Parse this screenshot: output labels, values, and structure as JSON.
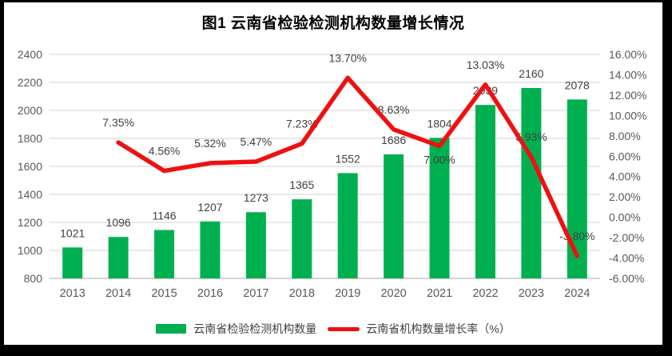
{
  "title": "图1 云南省检验检测机构数量增长情况",
  "colors": {
    "bar": "#00B050",
    "line": "#EE1111",
    "gridline": "#DCDCDC",
    "axis_line": "#C6C6C6",
    "tick_text": "#595959",
    "data_label_text": "#404040"
  },
  "legend": {
    "bar_label": "云南省检验检测机构数量",
    "line_label": "云南省机构数量增长率（%）"
  },
  "chart_data": {
    "type": "bar+line",
    "title": "图1 云南省检验检测机构数量增长情况",
    "categories": [
      "2013",
      "2014",
      "2015",
      "2016",
      "2017",
      "2018",
      "2019",
      "2020",
      "2021",
      "2022",
      "2023",
      "2024"
    ],
    "series": [
      {
        "name": "云南省检验检测机构数量",
        "type": "bar",
        "axis": "left",
        "values": [
          1021,
          1096,
          1146,
          1207,
          1273,
          1365,
          1552,
          1686,
          1804,
          2039,
          2160,
          2078
        ],
        "labels": [
          "1021",
          "1096",
          "1146",
          "1207",
          "1273",
          "1365",
          "1552",
          "1686",
          "1804",
          "2039",
          "2160",
          "2078"
        ]
      },
      {
        "name": "云南省机构数量增长率（%）",
        "type": "line",
        "axis": "right",
        "values": [
          null,
          7.35,
          4.56,
          5.32,
          5.47,
          7.23,
          13.7,
          8.63,
          7.0,
          13.03,
          5.93,
          -3.8
        ],
        "labels": [
          null,
          "7.35%",
          "4.56%",
          "5.32%",
          "5.47%",
          "7.23%",
          "13.70%",
          "8.63%",
          "7.00%",
          "13.03%",
          "5.93%",
          "-3.80%"
        ],
        "label_position_overrides": {
          "2021": "below"
        }
      }
    ],
    "left_axis": {
      "min": 800,
      "max": 2400,
      "step": 200,
      "ticks": [
        "2400",
        "2200",
        "2000",
        "1800",
        "1600",
        "1400",
        "1200",
        "1000",
        "800"
      ]
    },
    "right_axis": {
      "min": -6,
      "max": 16,
      "step": 2,
      "ticks": [
        "16.00%",
        "14.00%",
        "12.00%",
        "10.00%",
        "8.00%",
        "6.00%",
        "4.00%",
        "2.00%",
        "0.00%",
        "-2.00%",
        "-4.00%",
        "-6.00%"
      ]
    },
    "grid": "horizontal",
    "legend_position": "bottom"
  }
}
